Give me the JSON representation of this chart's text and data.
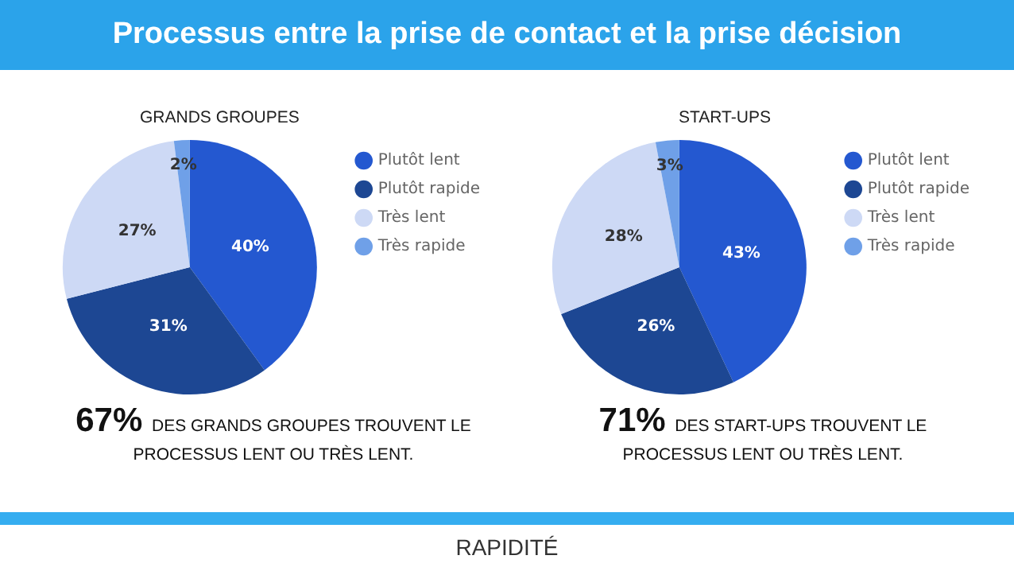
{
  "chart_data": [
    {
      "type": "pie",
      "title": "Processus entre la prise de contact et la prise décision",
      "subtitle": "GRANDS GROUPES",
      "categories": [
        "Plutôt lent",
        "Plutôt rapide",
        "Très lent",
        "Très rapide"
      ],
      "values": [
        40,
        31,
        27,
        2
      ],
      "value_labels": [
        "40%",
        "31%",
        "27%",
        "2%"
      ],
      "colors": [
        "#2458d0",
        "#1d4793",
        "#cdd9f5",
        "#6fa0e8"
      ],
      "legend": "right",
      "annotations": [
        "67% DES GRANDS GROUPES TROUVENT LE PROCESSUS LENT OU TRÈS LENT."
      ]
    },
    {
      "type": "pie",
      "subtitle": "START-UPS",
      "categories": [
        "Plutôt lent",
        "Plutôt rapide",
        "Très lent",
        "Très rapide"
      ],
      "values": [
        43,
        26,
        28,
        3
      ],
      "value_labels": [
        "43%",
        "26%",
        "28%",
        "3%"
      ],
      "colors": [
        "#2458d0",
        "#1d4793",
        "#cdd9f5",
        "#6fa0e8"
      ],
      "legend": "right",
      "annotations": [
        "71% DES START-UPS TROUVENT LE PROCESSUS LENT OU TRÈS LENT.",
        "RAPIDITÉ"
      ]
    }
  ]
}
